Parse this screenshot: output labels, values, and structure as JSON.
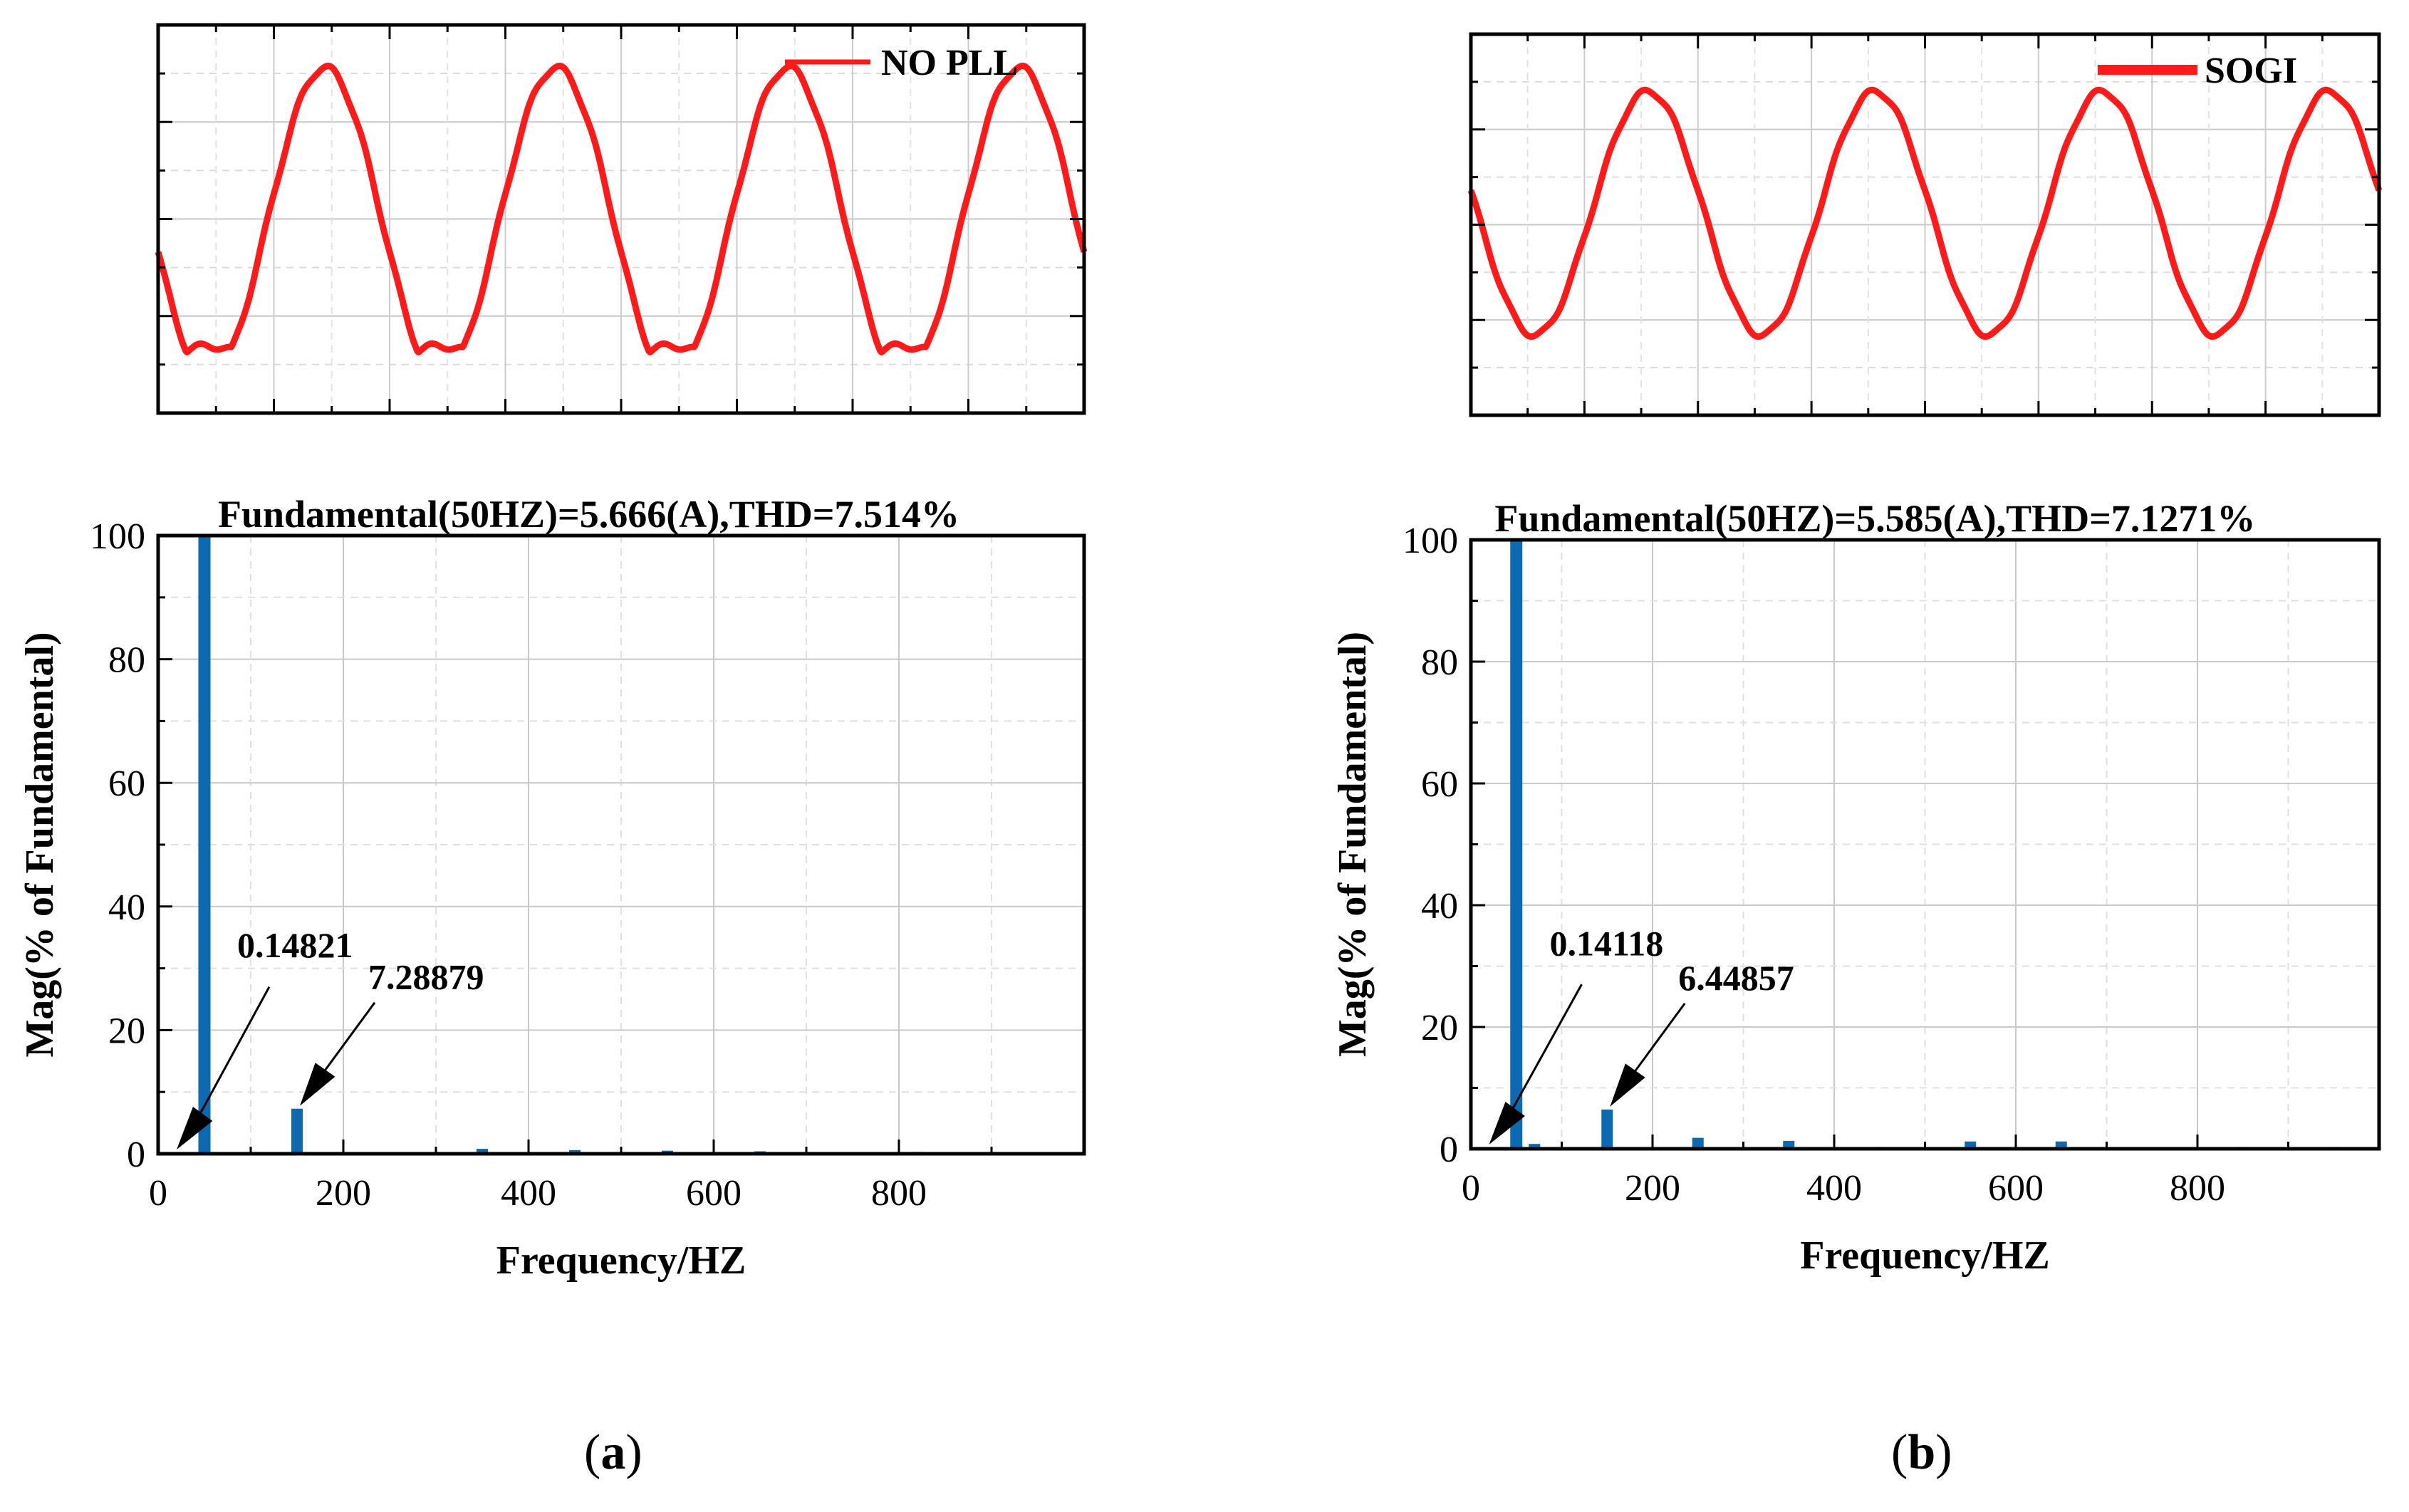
{
  "chart_data": [
    {
      "type": "line",
      "panel": "a",
      "legend": "NO PLL",
      "legend_position": "top-right",
      "series": [
        {
          "name": "NO PLL",
          "color": "#ff1a1a",
          "cycles": 4,
          "waveform": "sinusoid with flattened troughs"
        }
      ],
      "x_ticks_labelled": false,
      "y_ticks_labelled": false,
      "grid": true
    },
    {
      "type": "line",
      "panel": "b",
      "legend": "SOGI",
      "legend_position": "top-right",
      "series": [
        {
          "name": "SOGI",
          "color": "#ff1a1a",
          "cycles": 4,
          "waveform": "sinusoid"
        }
      ],
      "x_ticks_labelled": false,
      "y_ticks_labelled": false,
      "grid": true
    },
    {
      "type": "bar",
      "panel": "a",
      "title": "Fundamental(50HZ)=5.666(A),THD=7.514%",
      "xlabel": "Frequency/HZ",
      "ylabel": "Mag(% of Fundamental)",
      "xlim": [
        0,
        1000
      ],
      "ylim": [
        0,
        100
      ],
      "x_ticks": [
        "0",
        "200",
        "400",
        "600",
        "800"
      ],
      "y_ticks": [
        "0",
        "20",
        "40",
        "60",
        "80",
        "100"
      ],
      "bar_color": "#0e6ab0",
      "x": [
        50,
        150,
        350,
        450,
        550,
        650,
        820
      ],
      "values": [
        100,
        7.28879,
        0.8,
        0.6,
        0.5,
        0.4,
        0.3
      ],
      "annotations": [
        {
          "text": "0.14821",
          "target_x": 20,
          "target_y": 0
        },
        {
          "text": "7.28879",
          "target_x": 150,
          "target_y": 7.28879
        }
      ]
    },
    {
      "type": "bar",
      "panel": "b",
      "title": "Fundamental(50HZ)=5.585(A),THD=7.1271%",
      "xlabel": "Frequency/HZ",
      "ylabel": "Mag(% of Fundamental)",
      "xlim": [
        0,
        1000
      ],
      "ylim": [
        0,
        100
      ],
      "x_ticks": [
        "0",
        "200",
        "400",
        "600",
        "800"
      ],
      "y_ticks": [
        "0",
        "20",
        "40",
        "60",
        "80",
        "100"
      ],
      "bar_color": "#0e6ab0",
      "x": [
        50,
        70,
        150,
        250,
        350,
        450,
        550,
        650,
        850,
        950
      ],
      "values": [
        100,
        0.8,
        6.44857,
        1.8,
        1.3,
        0.3,
        1.2,
        1.2,
        0.3,
        0.3
      ],
      "annotations": [
        {
          "text": "0.14118",
          "target_x": 20,
          "target_y": 0
        },
        {
          "text": "6.44857",
          "target_x": 150,
          "target_y": 6.44857
        }
      ]
    }
  ],
  "panel_labels": [
    "(a)",
    "(b)"
  ]
}
